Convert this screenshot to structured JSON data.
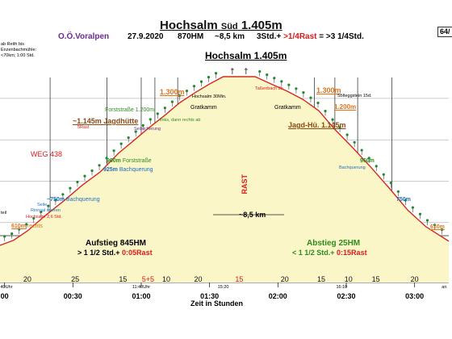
{
  "header": {
    "title": "Hochsalm",
    "title_sub": "Süd",
    "title_alt": "1.405m",
    "region": "O.Ö.Voralpen",
    "date": "27.9.2020",
    "hm": "870HM",
    "distance": "~8,5 km",
    "time_prefix": "3Std.+",
    "time_rest": ">1/4Rast",
    "time_total": "= >3 1/4Std.",
    "badge": "64/"
  },
  "notes": [
    "ab Reith bis",
    "Enzenbachmühle:",
    "<70km; 1:00 Std."
  ],
  "summit": "Hochsalm 1.405m",
  "chart_data": {
    "type": "area",
    "xlabel": "Zeit in Stunden",
    "x_ticks": [
      "00",
      "00:30",
      "01:00",
      "01:30",
      "02:00",
      "02:30",
      "03:00"
    ],
    "x_tick_minutes": [
      0,
      30,
      60,
      90,
      120,
      150,
      180
    ],
    "xlim_minutes": [
      -2,
      195
    ],
    "ylim_m": [
      520,
      1440
    ],
    "profile": [
      {
        "t": -2,
        "h": 590
      },
      {
        "t": 4,
        "h": 615
      },
      {
        "t": 10,
        "h": 660
      },
      {
        "t": 18,
        "h": 735
      },
      {
        "t": 26,
        "h": 805
      },
      {
        "t": 34,
        "h": 880
      },
      {
        "t": 42,
        "h": 945
      },
      {
        "t": 50,
        "h": 1035
      },
      {
        "t": 56,
        "h": 1090
      },
      {
        "t": 63,
        "h": 1155
      },
      {
        "t": 70,
        "h": 1215
      },
      {
        "t": 77,
        "h": 1280
      },
      {
        "t": 84,
        "h": 1330
      },
      {
        "t": 90,
        "h": 1370
      },
      {
        "t": 96,
        "h": 1405
      },
      {
        "t": 110,
        "h": 1405
      },
      {
        "t": 116,
        "h": 1375
      },
      {
        "t": 124,
        "h": 1335
      },
      {
        "t": 131,
        "h": 1295
      },
      {
        "t": 138,
        "h": 1240
      },
      {
        "t": 145,
        "h": 1150
      },
      {
        "t": 153,
        "h": 1060
      },
      {
        "t": 161,
        "h": 965
      },
      {
        "t": 169,
        "h": 865
      },
      {
        "t": 177,
        "h": 760
      },
      {
        "t": 185,
        "h": 680
      },
      {
        "t": 195,
        "h": 610
      }
    ],
    "segment_minutes": [
      {
        "label": "20",
        "t": 10
      },
      {
        "label": "25",
        "t": 31
      },
      {
        "label": "15",
        "t": 52
      },
      {
        "label": "5+5",
        "t": 63
      },
      {
        "label": "10",
        "t": 71
      },
      {
        "label": "20",
        "t": 85
      },
      {
        "label": "15",
        "t": 103
      },
      {
        "label": "20",
        "t": 123
      },
      {
        "label": "15",
        "t": 139
      },
      {
        "label": "10",
        "t": 151
      },
      {
        "label": "15",
        "t": 163
      },
      {
        "label": "20",
        "t": 180
      }
    ],
    "time_marks": [
      {
        "label": "0:40Uhr",
        "t": 0
      },
      {
        "label": "11:40Uhr",
        "t": 60
      },
      {
        "label": "15:20",
        "t": 96
      },
      {
        "label": "16:10",
        "t": 148
      },
      {
        "label": "an",
        "t": 193
      }
    ]
  },
  "labels": {
    "aufstieg": "Aufstieg 845HM",
    "aufstieg_time": "> 1 1/2 Std.+",
    "aufstieg_rest": "0:05Rast",
    "abstieg": "Abstieg 25HM",
    "abstieg_time": "< 1 1/2 Std.+",
    "abstieg_rest": "0:15Rast",
    "distance": "~8,5 km",
    "rast": "RAST",
    "gratkamm_l": "Gratkamm",
    "gratkamm_r": "Gratkamm",
    "h1300_l": "1.300m",
    "h1300_r": "1.300m",
    "forststrasse_1200": "Forststraße 1.200m",
    "h1200_r": "1.200m",
    "jagdhuette_l": "~1.145m Jagdhütte",
    "jagdhuette_r": "Jagd-Hü. 1.145m",
    "rast5": "5Rast",
    "seilsicherung": "Seilsicherung",
    "links_rechts": "links, dann rechts ab",
    "weg438": "WEG 438",
    "h960_l": "960m",
    "forststrasse_l": "Forststraße",
    "h925": "925m",
    "bachquerung": "Bachquerung",
    "h960_r": "960m",
    "bachquerung_r": "Bachquerung",
    "h750_l": "~750m",
    "bachquerung_750": "Bachquerung",
    "h750_r": "750m",
    "seile": "Seile",
    "rinnsal": "Rinnsal queren",
    "hochsalm_tiny": "Hochsalm 2,6 Std.",
    "teil": "teil",
    "h610_l": "610m",
    "rechts": "rechts",
    "h610_r": "610m",
    "hochsalm30": "Hochsalm 30Min.",
    "tassenbach": "Taßenbach 2h",
    "soitlestein": "Sölteggstein 15d."
  },
  "colors": {
    "profile": "#d42a1a",
    "fill": "#fbf6c8",
    "grid": "#222222",
    "tree": "#1f8a2a"
  }
}
